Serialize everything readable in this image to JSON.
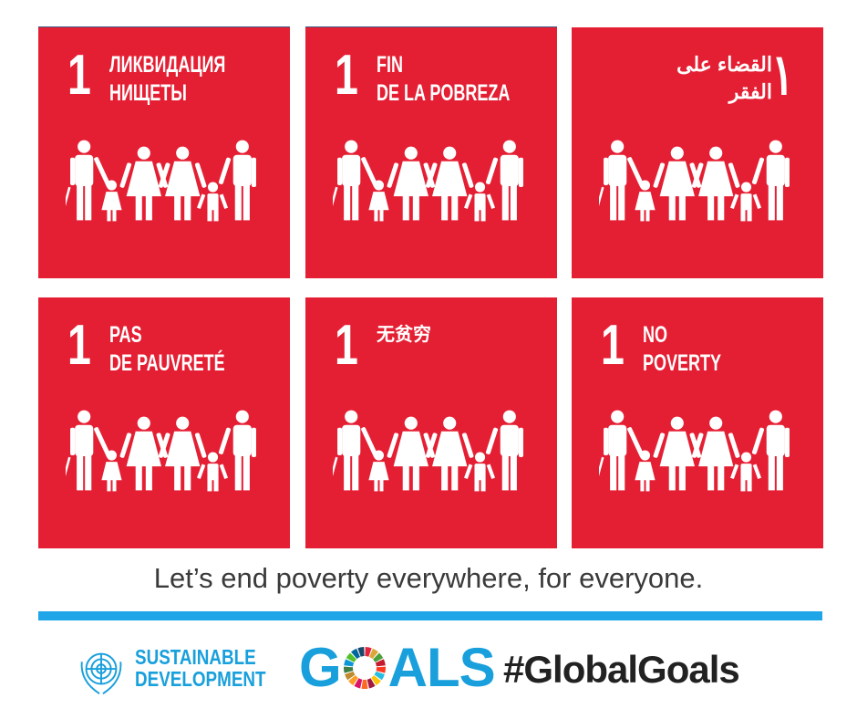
{
  "tiles": [
    {
      "number": "1",
      "title": "ЛИКВИДАЦИЯ\nНИЩЕТЫ",
      "language": "Russian"
    },
    {
      "number": "1",
      "title": "FIN\nDE LA POBREZA",
      "language": "Spanish"
    },
    {
      "number": "١",
      "title": "القضاء على\nالفقر",
      "language": "Arabic"
    },
    {
      "number": "1",
      "title": "PAS\nDE PAUVRETÉ",
      "language": "French"
    },
    {
      "number": "1",
      "title": "无贫穷",
      "language": "Chinese"
    },
    {
      "number": "1",
      "title": "NO\nPOVERTY",
      "language": "English"
    }
  ],
  "caption": "Let’s end poverty everywhere, for everyone.",
  "footer": {
    "sdg_line1": "SUSTAINABLE",
    "sdg_line2": "DEVELOPMENT",
    "goals_prefix": "G",
    "goals_suffix": "ALS",
    "hashtag": "#GlobalGoals"
  },
  "colors": {
    "tile": "#e51f33",
    "bar": "#1ea6e8",
    "sdg_blue": "#19a0dc"
  },
  "icons": {
    "tile_icon": "family-icon",
    "logo": "un-emblem-icon",
    "wheel": "sdg-color-wheel-icon"
  }
}
